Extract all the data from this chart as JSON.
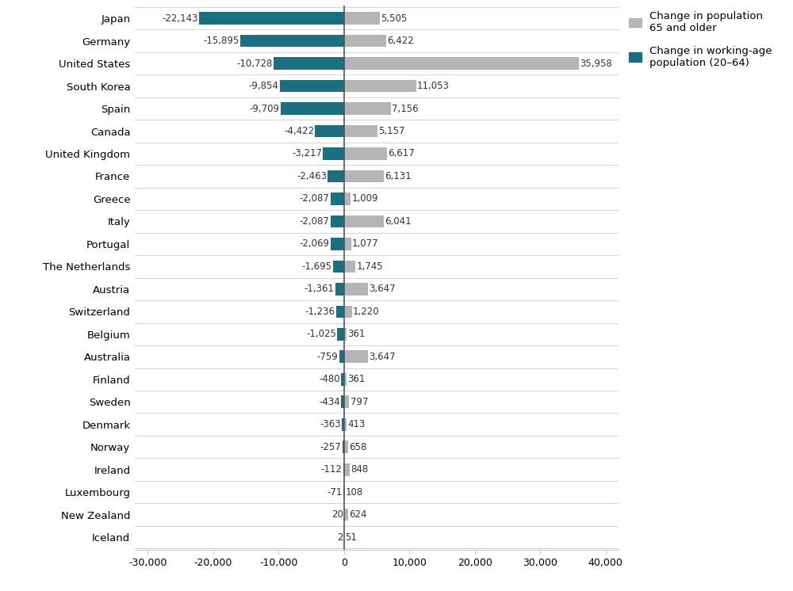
{
  "countries": [
    "Japan",
    "Germany",
    "United States",
    "South Korea",
    "Spain",
    "Canada",
    "United Kingdom",
    "France",
    "Greece",
    "Italy",
    "Portugal",
    "The Netherlands",
    "Austria",
    "Switzerland",
    "Belgium",
    "Australia",
    "Finland",
    "Sweden",
    "Denmark",
    "Norway",
    "Ireland",
    "Luxembourg",
    "New Zealand",
    "Iceland"
  ],
  "working_age": [
    -22143,
    -15895,
    -10728,
    -9854,
    -9709,
    -4422,
    -3217,
    -2463,
    -2087,
    -2087,
    -2069,
    -1695,
    -1361,
    -1236,
    -1025,
    -759,
    -480,
    -434,
    -363,
    -257,
    -112,
    -71,
    20,
    2
  ],
  "elderly": [
    5505,
    6422,
    35958,
    11053,
    7156,
    5157,
    6617,
    6131,
    1009,
    6041,
    1077,
    1745,
    3647,
    1220,
    361,
    3647,
    361,
    797,
    413,
    658,
    848,
    108,
    624,
    51
  ],
  "working_age_color": "#1a7080",
  "elderly_color": "#b5b5b5",
  "working_age_label": "Change in working-age\npopulation (20–64)",
  "elderly_label": "Change in population\n65 and older",
  "xlim": [
    -32000,
    42000
  ],
  "xticks": [
    -30000,
    -20000,
    -10000,
    0,
    10000,
    20000,
    30000,
    40000
  ],
  "xtick_labels": [
    "-30,000",
    "-20,000",
    "-10,000",
    "0",
    "10,000",
    "20,000",
    "30,000",
    "40,000"
  ],
  "bar_height": 0.55,
  "background_color": "#ffffff",
  "divider_color": "#cccccc",
  "zero_line_color": "#555555",
  "label_fontsize": 9.5,
  "tick_fontsize": 9,
  "value_fontsize": 8.5,
  "value_color": "#333333"
}
